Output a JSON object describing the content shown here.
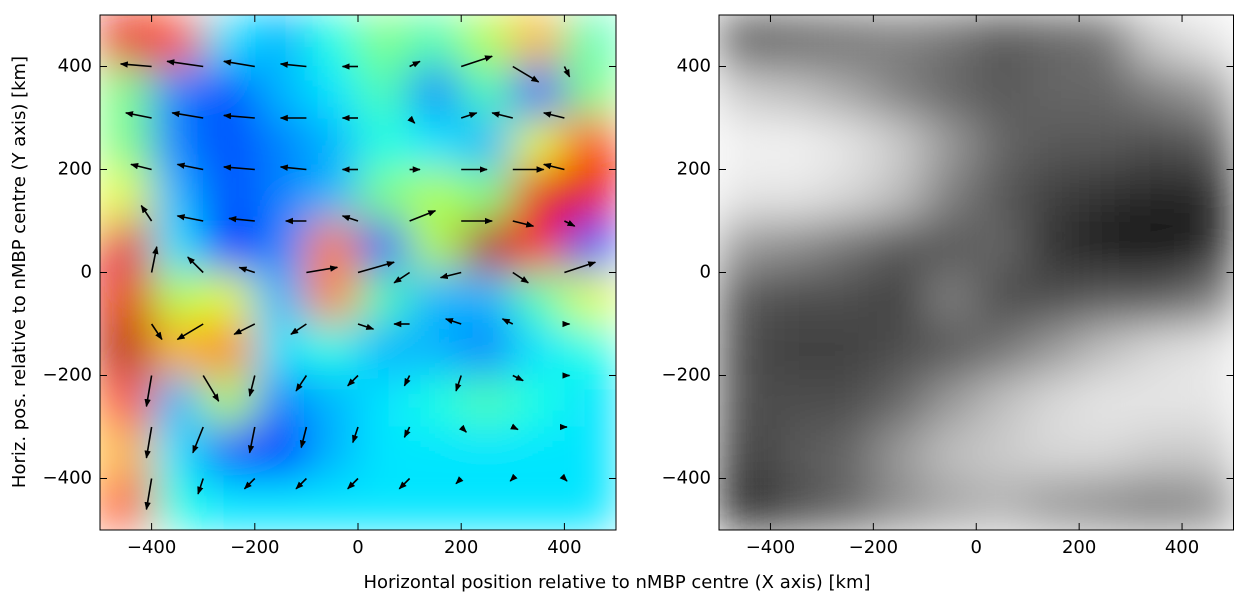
{
  "chart_data": [
    {
      "type": "heatmap",
      "colormap": "jet",
      "xlabel": "Horizontal position relative to nMBP centre (X axis) [km]",
      "ylabel": "Horiz. pos. relative to nMBP centre (Y axis) [km]",
      "xlim": [
        -500,
        500
      ],
      "ylim": [
        -500,
        500
      ],
      "xticks": [
        {
          "value": -400,
          "label": "−400"
        },
        {
          "value": -200,
          "label": "−200"
        },
        0,
        200,
        400
      ],
      "yticks": [
        {
          "value": -400,
          "label": "−400"
        },
        {
          "value": -200,
          "label": "−200"
        },
        0,
        200,
        400
      ],
      "z": [
        [
          0.9,
          0.8,
          0.35,
          0.3,
          0.4,
          0.5,
          0.45,
          0.55,
          0.7,
          0.45
        ],
        [
          0.5,
          0.25,
          0.2,
          0.3,
          0.35,
          0.45,
          0.25,
          0.45,
          0.2,
          0.5
        ],
        [
          0.5,
          0.25,
          0.2,
          0.25,
          0.3,
          0.4,
          0.35,
          0.3,
          0.6,
          0.85
        ],
        [
          0.6,
          0.3,
          0.2,
          0.25,
          0.3,
          0.5,
          0.55,
          0.5,
          0.9,
          0.9
        ],
        [
          0.9,
          0.35,
          0.15,
          0.25,
          0.75,
          0.2,
          0.55,
          0.95,
          0.85,
          0.2
        ],
        [
          0.9,
          0.55,
          0.6,
          0.3,
          0.75,
          0.45,
          0.3,
          0.3,
          0.45,
          0.6
        ],
        [
          0.95,
          0.7,
          0.75,
          0.35,
          0.4,
          0.3,
          0.3,
          0.25,
          0.35,
          0.4
        ],
        [
          0.8,
          0.3,
          0.55,
          0.25,
          0.3,
          0.35,
          0.4,
          0.45,
          0.4,
          0.35
        ],
        [
          0.7,
          0.35,
          0.2,
          0.15,
          0.3,
          0.35,
          0.35,
          0.35,
          0.35,
          0.35
        ],
        [
          0.8,
          0.4,
          0.35,
          0.35,
          0.35,
          0.35,
          0.35,
          0.35,
          0.35,
          0.35
        ]
      ],
      "vectors": {
        "x": [
          -400,
          -300,
          -200,
          -100,
          0,
          100,
          200,
          300,
          400
        ],
        "y": [
          400,
          300,
          200,
          100,
          0,
          -100,
          -200,
          -300,
          -400
        ],
        "u": [
          [
            -60,
            -70,
            -60,
            -50,
            -30,
            20,
            60,
            50,
            10
          ],
          [
            -50,
            -60,
            -60,
            -50,
            -30,
            10,
            30,
            -40,
            -40
          ],
          [
            -40,
            -50,
            -60,
            -50,
            -30,
            20,
            50,
            60,
            -40
          ],
          [
            -20,
            -50,
            -50,
            -40,
            -30,
            50,
            60,
            40,
            20
          ],
          [
            10,
            -30,
            -30,
            60,
            70,
            -30,
            -40,
            30,
            60
          ],
          [
            20,
            -50,
            -40,
            -30,
            30,
            -30,
            -30,
            -20,
            10
          ],
          [
            -10,
            30,
            -10,
            -20,
            -20,
            -10,
            -10,
            20,
            10
          ],
          [
            -10,
            -20,
            -10,
            -10,
            -10,
            -10,
            10,
            10,
            5
          ],
          [
            -10,
            -10,
            -20,
            -20,
            -20,
            -20,
            -10,
            -5,
            5
          ]
        ],
        "v": [
          [
            5,
            10,
            10,
            5,
            0,
            10,
            20,
            -30,
            -20
          ],
          [
            10,
            10,
            5,
            0,
            0,
            -10,
            10,
            10,
            10
          ],
          [
            10,
            10,
            5,
            5,
            0,
            0,
            0,
            0,
            10
          ],
          [
            30,
            10,
            5,
            0,
            10,
            20,
            0,
            -10,
            -10
          ],
          [
            50,
            30,
            10,
            10,
            20,
            -20,
            -10,
            -20,
            20
          ],
          [
            -30,
            -30,
            -20,
            -20,
            -10,
            0,
            10,
            10,
            0
          ],
          [
            -60,
            -50,
            -40,
            -30,
            -20,
            -20,
            -30,
            -10,
            0
          ],
          [
            -60,
            -50,
            -50,
            -40,
            -30,
            -20,
            -10,
            -5,
            0
          ],
          [
            -60,
            -30,
            -20,
            -20,
            -20,
            -20,
            -10,
            -5,
            -5
          ]
        ]
      }
    },
    {
      "type": "heatmap",
      "colormap": "gray",
      "xlim": [
        -500,
        500
      ],
      "ylim": [
        -500,
        500
      ],
      "xticks": [
        {
          "value": -400,
          "label": "−400"
        },
        {
          "value": -200,
          "label": "−200"
        },
        0,
        200,
        400
      ],
      "yticks": [
        {
          "value": -400,
          "label": "−400"
        },
        {
          "value": -200,
          "label": "−200"
        },
        0,
        200,
        400
      ],
      "z": [
        [
          0.35,
          0.4,
          0.45,
          0.5,
          0.45,
          0.35,
          0.4,
          0.45,
          0.8,
          0.9
        ],
        [
          0.8,
          0.75,
          0.65,
          0.5,
          0.4,
          0.35,
          0.4,
          0.4,
          0.5,
          0.6
        ],
        [
          0.95,
          0.95,
          0.9,
          0.8,
          0.6,
          0.4,
          0.35,
          0.35,
          0.3,
          0.35
        ],
        [
          0.9,
          0.9,
          0.85,
          0.75,
          0.5,
          0.35,
          0.25,
          0.2,
          0.15,
          0.15
        ],
        [
          0.6,
          0.55,
          0.45,
          0.35,
          0.35,
          0.4,
          0.2,
          0.1,
          0.05,
          0.15
        ],
        [
          0.35,
          0.3,
          0.3,
          0.25,
          0.5,
          0.3,
          0.3,
          0.35,
          0.35,
          0.45
        ],
        [
          0.3,
          0.25,
          0.25,
          0.3,
          0.35,
          0.45,
          0.6,
          0.75,
          0.85,
          0.9
        ],
        [
          0.3,
          0.3,
          0.3,
          0.4,
          0.6,
          0.75,
          0.85,
          0.9,
          0.9,
          0.9
        ],
        [
          0.25,
          0.35,
          0.4,
          0.6,
          0.75,
          0.8,
          0.85,
          0.85,
          0.8,
          0.8
        ],
        [
          0.15,
          0.3,
          0.4,
          0.55,
          0.65,
          0.7,
          0.6,
          0.55,
          0.5,
          0.55
        ]
      ]
    }
  ]
}
